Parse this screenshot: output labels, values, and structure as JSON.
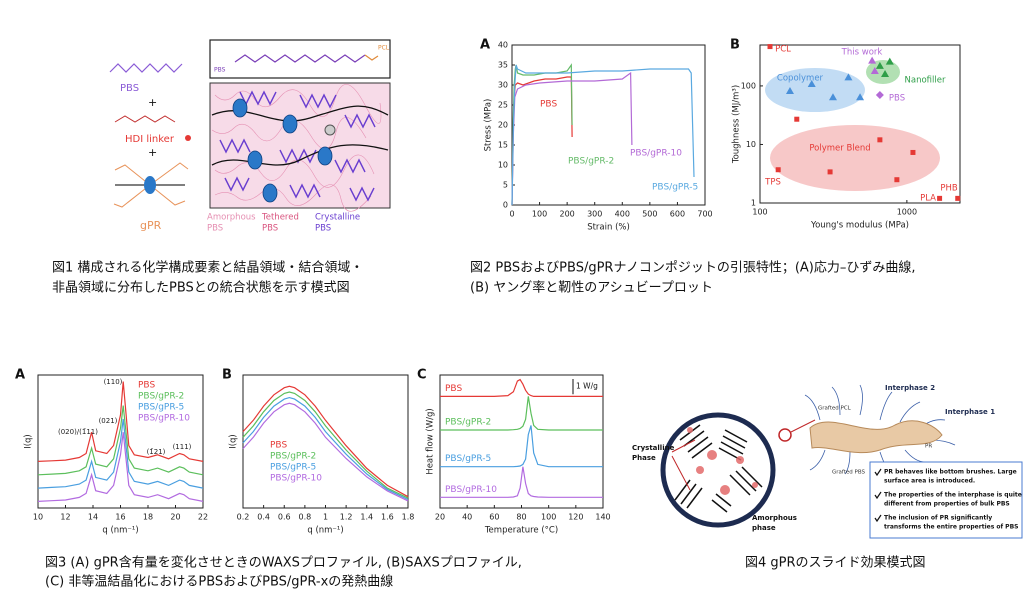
{
  "figure1": {
    "top_pbs": "PBS",
    "top_pcl": "PCL",
    "pbs": "PBS",
    "plus": "+",
    "hdi_linker": "HDI linker",
    "gpr": "gPR",
    "amorphous": [
      "Amorphous",
      "PBS"
    ],
    "tethered": [
      "Tethered",
      "PBS"
    ],
    "crystalline": [
      "Crystalline",
      "PBS"
    ],
    "caption": [
      "図1 構成される化学構成要素と結晶領域・結合領域・",
      "非晶領域に分布したPBSとの統合状態を示す模式図"
    ]
  },
  "figure2": {
    "caption": [
      "図2 PBSおよびPBS/gPRナノコンポジットの引張特性；(A)応力–ひずみ曲線,",
      "(B) ヤング率と靭性のアシュビープロット"
    ]
  },
  "figure3": {
    "caption": [
      "図3 (A) gPR含有量を変化させときのWAXSプロファイル, (B)SAXSプロファイル,",
      "(C) 非等温結晶化におけるPBSおよびPBS/gPR-xの発熱曲線"
    ]
  },
  "figure4": {
    "crystalline": [
      "Crystalline",
      "Phase"
    ],
    "amorphous": [
      "Amorphous",
      "phase"
    ],
    "interphase2": "Interphase 2",
    "interphase1": "Interphase 1",
    "grafted_pcl": "Grafted PCL",
    "pr": "PR",
    "grafted_pbs": "Grafted PBS",
    "bullets": [
      [
        "PR behaves like bottom brushes. Large",
        "surface area is introduced."
      ],
      [
        "The properties of the interphase is quite",
        "different from properties of bulk PBS"
      ],
      [
        "The inclusion of PR significantly",
        "transforms the entire properties of PBS"
      ]
    ],
    "caption": "図4 gPRのスライド効果模式図"
  },
  "chart_data": [
    {
      "type": "line",
      "panel": "A",
      "x_label": "Strain (%)",
      "y_label": "Stress (MPa)",
      "xlim": [
        0,
        700
      ],
      "xticks": [
        0,
        100,
        200,
        300,
        400,
        500,
        600,
        700
      ],
      "ylim": [
        0,
        40
      ],
      "yticks": [
        0,
        5,
        10,
        15,
        20,
        25,
        30,
        35,
        40
      ],
      "series": [
        {
          "name": "PBS",
          "color": "#e53935",
          "x": [
            0,
            4,
            8,
            12,
            20,
            40,
            80,
            120,
            160,
            200,
            215,
            218
          ],
          "values": [
            0,
            18,
            27,
            30,
            30.5,
            30,
            31,
            31.5,
            31.5,
            32,
            32,
            17
          ]
        },
        {
          "name": "PBS/gPR-2",
          "color": "#66bb6a",
          "x": [
            0,
            4,
            8,
            12,
            15,
            20,
            40,
            80,
            120,
            160,
            200,
            215,
            218
          ],
          "values": [
            0,
            20,
            30,
            34,
            35,
            33,
            32.5,
            32.5,
            33,
            33,
            33.5,
            35,
            20
          ]
        },
        {
          "name": "PBS/gPR-10",
          "color": "#b36ad6",
          "x": [
            0,
            5,
            10,
            20,
            50,
            100,
            200,
            300,
            400,
            430,
            435
          ],
          "values": [
            0,
            18,
            27,
            29,
            30,
            30.5,
            31,
            31,
            31.5,
            33,
            15
          ]
        },
        {
          "name": "PBS/gPR-5",
          "color": "#5aa9e0",
          "x": [
            0,
            5,
            10,
            15,
            20,
            50,
            100,
            200,
            300,
            400,
            500,
            600,
            640,
            650,
            660
          ],
          "values": [
            0,
            20,
            30,
            35,
            34,
            33,
            33,
            33,
            33.5,
            33.5,
            34,
            34,
            34,
            33,
            7
          ]
        }
      ]
    },
    {
      "type": "scatter",
      "panel": "B",
      "x_label": "Young's modulus (MPa)",
      "y_label": "Toughness (MJ/m³)",
      "xscale": "log",
      "yscale": "log",
      "xlim": [
        100,
        2300
      ],
      "xticks": [
        100,
        1000
      ],
      "ylim": [
        1,
        500
      ],
      "yticks": [
        1,
        10,
        100
      ],
      "series": [
        {
          "name": "Copolymer",
          "color": "#4a90d9",
          "marker": "triangle",
          "x": [
            160,
            225,
            314,
            400,
            480
          ],
          "values": [
            82,
            108,
            64,
            140,
            64
          ]
        },
        {
          "name": "Polymer Blend",
          "color": "#e53935",
          "marker": "square",
          "x": [
            178,
            300,
            655,
            855,
            1100
          ],
          "values": [
            27,
            3.4,
            12,
            2.5,
            7.3
          ]
        },
        {
          "name": "Nanofiller",
          "color": "#2e9e48",
          "marker": "triangle",
          "x": [
            655,
            765,
            710
          ],
          "values": [
            220,
            260,
            160
          ]
        },
        {
          "name": "This work",
          "color": "#b36ad6",
          "marker": "triangle",
          "x": [
            580,
            605
          ],
          "values": [
            270,
            180
          ]
        },
        {
          "name": "PBS",
          "color": "#b36ad6",
          "marker": "diamond",
          "x": [
            655
          ],
          "values": [
            70
          ]
        },
        {
          "name": "PCL",
          "color": "#e53935",
          "marker": "square",
          "x": [
            117
          ],
          "values": [
            470
          ]
        },
        {
          "name": "TPS",
          "color": "#e53935",
          "marker": "square",
          "x": [
            133
          ],
          "values": [
            3.7
          ]
        },
        {
          "name": "PLA",
          "color": "#e53935",
          "marker": "square",
          "x": [
            1670
          ],
          "values": [
            1.2
          ]
        },
        {
          "name": "PHB",
          "color": "#e53935",
          "marker": "square",
          "x": [
            2220
          ],
          "values": [
            1.2
          ]
        }
      ]
    },
    {
      "type": "line",
      "panel": "A",
      "x_label": "q (nm⁻¹)",
      "y_label": "I(q)",
      "legend": "top-right",
      "xlim": [
        10,
        22
      ],
      "xticks": [
        10,
        12,
        14,
        16,
        18,
        20,
        22
      ],
      "ylim": [
        0.5,
        10.5
      ],
      "annotations": [
        "(110)",
        "(020)/(1̄11)",
        "(021)",
        "(1̄21)",
        "(111)"
      ],
      "x": [
        10,
        11,
        12,
        13,
        13.5,
        13.9,
        14.2,
        15,
        15.5,
        16.0,
        16.2,
        16.6,
        17,
        18,
        18.7,
        19.5,
        20.3,
        20.6,
        21,
        22
      ],
      "series": [
        {
          "name": "PBS",
          "color": "#e53935",
          "values": [
            4,
            4.05,
            4.1,
            4.3,
            4.6,
            6.2,
            4.8,
            4.6,
            5.2,
            7.5,
            10,
            5.2,
            4.5,
            4.3,
            4.5,
            4.2,
            4.6,
            4.5,
            4.2,
            4
          ]
        },
        {
          "name": "PBS/gPR-2",
          "color": "#5cbf5c",
          "values": [
            3,
            3.05,
            3.1,
            3.3,
            3.6,
            5,
            3.8,
            3.6,
            4.2,
            6.5,
            8.2,
            4.2,
            3.5,
            3.3,
            3.5,
            3.2,
            3.6,
            3.5,
            3.2,
            3
          ]
        },
        {
          "name": "PBS/gPR-5",
          "color": "#4a9fe0",
          "values": [
            2,
            2.05,
            2.1,
            2.3,
            2.6,
            4,
            2.8,
            2.6,
            3.2,
            5.5,
            7.2,
            3.2,
            2.5,
            2.3,
            2.5,
            2.2,
            2.6,
            2.5,
            2.2,
            2
          ]
        },
        {
          "name": "PBS/gPR-10",
          "color": "#b26be0",
          "values": [
            1,
            1.05,
            1.1,
            1.3,
            1.6,
            3,
            1.8,
            1.6,
            2.2,
            4.5,
            6.2,
            2.2,
            1.5,
            1.3,
            1.5,
            1.2,
            1.6,
            1.5,
            1.2,
            1
          ]
        }
      ]
    },
    {
      "type": "line",
      "panel": "B",
      "x_label": "q (nm⁻¹)",
      "y_label": "I(q)",
      "legend": "bottom-left",
      "xlim": [
        0.2,
        1.8
      ],
      "xticks": [
        0.2,
        0.4,
        0.6,
        0.8,
        1.0,
        1.2,
        1.4,
        1.6,
        1.8
      ],
      "ylim": [
        0.5,
        5.2
      ],
      "x": [
        0.2,
        0.3,
        0.4,
        0.5,
        0.6,
        0.65,
        0.7,
        0.8,
        0.9,
        1.0,
        1.2,
        1.4,
        1.6,
        1.8
      ],
      "series": [
        {
          "name": "PBS",
          "color": "#e53935",
          "values": [
            3.2,
            3.6,
            4.1,
            4.5,
            4.75,
            4.8,
            4.75,
            4.5,
            4.1,
            3.6,
            2.7,
            1.9,
            1.3,
            0.9
          ]
        },
        {
          "name": "PBS/gPR-2",
          "color": "#5cbf5c",
          "values": [
            3.0,
            3.4,
            3.9,
            4.3,
            4.55,
            4.6,
            4.55,
            4.3,
            3.9,
            3.4,
            2.55,
            1.8,
            1.2,
            0.85
          ]
        },
        {
          "name": "PBS/gPR-5",
          "color": "#4a9fe0",
          "values": [
            2.8,
            3.2,
            3.7,
            4.1,
            4.35,
            4.4,
            4.35,
            4.1,
            3.7,
            3.2,
            2.4,
            1.7,
            1.15,
            0.8
          ]
        },
        {
          "name": "PBS/gPR-10",
          "color": "#b26be0",
          "values": [
            2.6,
            3.0,
            3.5,
            3.9,
            4.15,
            4.2,
            4.15,
            3.9,
            3.5,
            3.0,
            2.25,
            1.6,
            1.1,
            0.75
          ]
        }
      ]
    },
    {
      "type": "line",
      "panel": "C",
      "x_label": "Temperature (°C)",
      "y_label": "Heat flow (W/g)",
      "scale_bar": {
        "value": 1,
        "label": "1 W/g"
      },
      "xlim": [
        20,
        140
      ],
      "xticks": [
        20,
        40,
        60,
        80,
        100,
        120,
        140
      ],
      "ylim": [
        0,
        8.7
      ],
      "x": [
        20,
        40,
        60,
        70,
        74,
        77,
        79,
        81,
        83,
        85,
        87,
        89,
        92,
        100,
        120,
        140
      ],
      "series": [
        {
          "name": "PBS",
          "color": "#e53935",
          "values": [
            7.3,
            7.3,
            7.3,
            7.35,
            7.6,
            8.3,
            8.4,
            8.1,
            7.7,
            7.45,
            7.35,
            7.3,
            7.3,
            7.3,
            7.3,
            7.3
          ]
        },
        {
          "name": "PBS/gPR-2",
          "color": "#5cbf5c",
          "values": [
            5.1,
            5.1,
            5.1,
            5.1,
            5.12,
            5.15,
            5.2,
            5.35,
            5.8,
            7.3,
            6.2,
            5.4,
            5.15,
            5.1,
            5.1,
            5.1
          ]
        },
        {
          "name": "PBS/gPR-5",
          "color": "#4a9fe0",
          "values": [
            2.7,
            2.7,
            2.7,
            2.7,
            2.7,
            2.72,
            2.75,
            2.85,
            3.2,
            4.8,
            5.4,
            3.6,
            2.85,
            2.7,
            2.7,
            2.7
          ]
        },
        {
          "name": "PBS/gPR-10",
          "color": "#b26be0",
          "values": [
            0.7,
            0.7,
            0.7,
            0.7,
            0.72,
            0.8,
            1.3,
            2.7,
            1.6,
            0.95,
            0.8,
            0.75,
            0.72,
            0.7,
            0.7,
            0.7
          ]
        }
      ]
    }
  ]
}
